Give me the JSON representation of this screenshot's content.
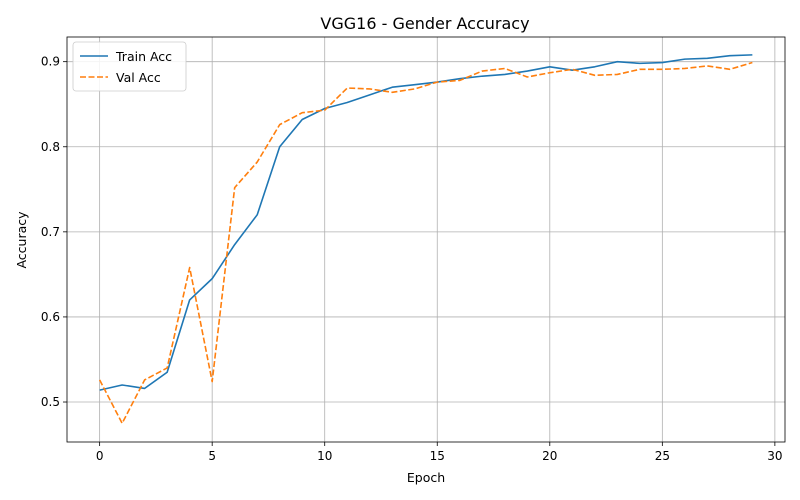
{
  "chart_data": {
    "type": "line",
    "title": "VGG16 - Gender Accuracy",
    "xlabel": "Epoch",
    "ylabel": "Accuracy",
    "xlim": [
      -1.45,
      30.45
    ],
    "ylim": [
      0.453,
      0.929
    ],
    "xticks": [
      0,
      5,
      10,
      15,
      20,
      25,
      30
    ],
    "xtick_labels": [
      "0",
      "5",
      "10",
      "15",
      "20",
      "25",
      "30"
    ],
    "yticks": [
      0.5,
      0.6,
      0.7,
      0.8,
      0.9
    ],
    "ytick_labels": [
      "0.5",
      "0.6",
      "0.7",
      "0.8",
      "0.9"
    ],
    "grid": true,
    "legend": "top-left",
    "x": [
      0,
      1,
      2,
      3,
      4,
      5,
      6,
      7,
      8,
      9,
      10,
      11,
      12,
      13,
      14,
      15,
      16,
      17,
      18,
      19,
      20,
      21,
      22,
      23,
      24,
      25,
      26,
      27,
      28,
      29
    ],
    "series": [
      {
        "name": "Train Acc",
        "color": "#1f77b4",
        "style": "solid",
        "values": [
          0.514,
          0.52,
          0.516,
          0.535,
          0.62,
          0.645,
          0.685,
          0.72,
          0.8,
          0.832,
          0.845,
          0.852,
          0.861,
          0.87,
          0.873,
          0.876,
          0.88,
          0.883,
          0.885,
          0.889,
          0.894,
          0.89,
          0.894,
          0.9,
          0.898,
          0.899,
          0.903,
          0.904,
          0.907,
          0.908
        ]
      },
      {
        "name": "Val Acc",
        "color": "#ff7f0e",
        "style": "dashed",
        "values": [
          0.526,
          0.475,
          0.526,
          0.54,
          0.658,
          0.524,
          0.752,
          0.782,
          0.826,
          0.84,
          0.843,
          0.869,
          0.868,
          0.864,
          0.868,
          0.876,
          0.878,
          0.889,
          0.892,
          0.882,
          0.887,
          0.891,
          0.884,
          0.885,
          0.891,
          0.891,
          0.892,
          0.895,
          0.891,
          0.899
        ]
      }
    ]
  }
}
